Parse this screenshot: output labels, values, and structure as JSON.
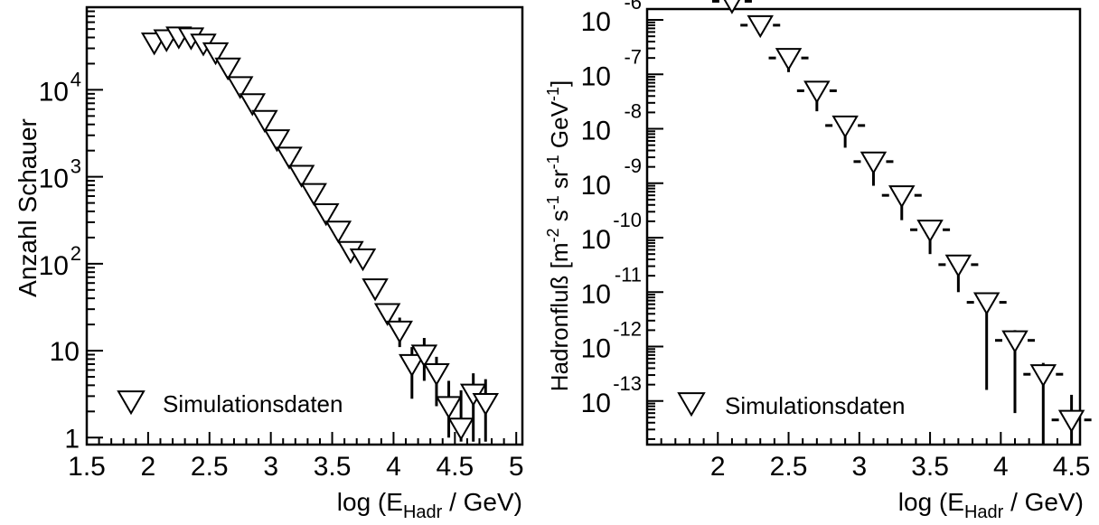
{
  "chart_data": [
    {
      "type": "scatter",
      "xlabel_main": "log (E",
      "xlabel_sub": "Hadr",
      "xlabel_tail": " / GeV)",
      "ylabel": "Anzahl Schauer",
      "xlim": [
        1.5,
        5.05
      ],
      "ylim_log10": [
        -0.08,
        4.95
      ],
      "y_scale": "log",
      "x_ticks": [
        "1.5",
        "2",
        "2.5",
        "3",
        "3.5",
        "4",
        "4.5",
        "5"
      ],
      "y_tick_labels": [
        {
          "value": 1,
          "base": "1",
          "exp": ""
        },
        {
          "value": 10,
          "base": "10",
          "exp": ""
        },
        {
          "value": 100,
          "base": "10",
          "exp": "2"
        },
        {
          "value": 1000,
          "base": "10",
          "exp": "3"
        },
        {
          "value": 10000,
          "base": "10",
          "exp": "4"
        }
      ],
      "legend": {
        "label": "Simulationsdaten",
        "position": "bottom-left"
      },
      "series": [
        {
          "name": "Simulationsdaten",
          "marker": "open-down-triangle",
          "points": [
            {
              "x": 2.05,
              "y": 35000
            },
            {
              "x": 2.15,
              "y": 38000
            },
            {
              "x": 2.25,
              "y": 41000
            },
            {
              "x": 2.35,
              "y": 40000
            },
            {
              "x": 2.45,
              "y": 34000
            },
            {
              "x": 2.55,
              "y": 27000
            },
            {
              "x": 2.65,
              "y": 18000
            },
            {
              "x": 2.75,
              "y": 11000
            },
            {
              "x": 2.85,
              "y": 7000
            },
            {
              "x": 2.95,
              "y": 4500
            },
            {
              "x": 3.05,
              "y": 2700
            },
            {
              "x": 3.15,
              "y": 1700
            },
            {
              "x": 3.25,
              "y": 1050
            },
            {
              "x": 3.35,
              "y": 650
            },
            {
              "x": 3.45,
              "y": 380
            },
            {
              "x": 3.55,
              "y": 240
            },
            {
              "x": 3.65,
              "y": 140
            },
            {
              "x": 3.75,
              "y": 115
            },
            {
              "x": 3.85,
              "y": 52
            },
            {
              "x": 3.95,
              "y": 27
            },
            {
              "x": 4.05,
              "y": 17,
              "err_lo": 11,
              "err_hi": 24
            },
            {
              "x": 4.15,
              "y": 7,
              "err_lo": 2.8,
              "err_hi": 11
            },
            {
              "x": 4.25,
              "y": 9,
              "err_lo": 4.5,
              "err_hi": 14
            },
            {
              "x": 4.35,
              "y": 5.5,
              "err_lo": 2.3,
              "err_hi": 8.5
            },
            {
              "x": 4.45,
              "y": 2.3,
              "err_lo": 1,
              "err_hi": 4.5
            },
            {
              "x": 4.55,
              "y": 1.3,
              "err_lo": 0.9,
              "err_hi": 3.5
            },
            {
              "x": 4.65,
              "y": 3.2,
              "err_lo": 0.9,
              "err_hi": 5.5
            },
            {
              "x": 4.75,
              "y": 2.5,
              "err_lo": 0.9,
              "err_hi": 4.7
            }
          ]
        }
      ]
    },
    {
      "type": "scatter",
      "xlabel_main": "log (E",
      "xlabel_sub": "Hadr",
      "xlabel_tail": " / GeV)",
      "ylabel_parts": [
        {
          "t": "Hadronfluß [m",
          "s": "n"
        },
        {
          "t": "-2",
          "s": "sup"
        },
        {
          "t": " s",
          "s": "n"
        },
        {
          "t": "-1",
          "s": "sup"
        },
        {
          "t": " sr",
          "s": "n"
        },
        {
          "t": "-1",
          "s": "sup"
        },
        {
          "t": " GeV",
          "s": "n"
        },
        {
          "t": "-1",
          "s": "sup"
        },
        {
          "t": "]",
          "s": "n"
        }
      ],
      "xlim": [
        1.5,
        4.56
      ],
      "ylim_log10": [
        -13.8,
        -5.8
      ],
      "y_scale": "log",
      "x_ticks": [
        "2",
        "2.5",
        "3",
        "3.5",
        "4",
        "4.5"
      ],
      "y_tick_labels": [
        {
          "exp": "-6"
        },
        {
          "exp": "-7"
        },
        {
          "exp": "-8"
        },
        {
          "exp": "-9"
        },
        {
          "exp": "-10"
        },
        {
          "exp": "-11"
        },
        {
          "exp": "-12"
        },
        {
          "exp": "-13"
        }
      ],
      "y_tick_base": "10",
      "legend": {
        "label": "Simulationsdaten",
        "position": "bottom-left"
      },
      "series": [
        {
          "name": "Simulationsdaten",
          "marker": "open-down-triangle",
          "points": [
            {
              "x": 2.1,
              "y": 2.2e-06
            },
            {
              "x": 2.3,
              "y": 8e-07,
              "err_lo": 6.5e-07,
              "err_hi": 9.5e-07
            },
            {
              "x": 2.5,
              "y": 2e-07,
              "err_lo": 1.1e-07,
              "err_hi": 2.5e-07
            },
            {
              "x": 2.7,
              "y": 5e-08,
              "err_lo": 2.1e-08,
              "err_hi": 6.5e-08
            },
            {
              "x": 2.9,
              "y": 1.15e-08,
              "err_lo": 4.5e-09,
              "err_hi": 1.5e-08
            },
            {
              "x": 3.1,
              "y": 2.5e-09,
              "err_lo": 9e-10,
              "err_hi": 3.4e-09
            },
            {
              "x": 3.3,
              "y": 6e-10,
              "err_lo": 2.1e-10,
              "err_hi": 8e-10
            },
            {
              "x": 3.5,
              "y": 1.4e-10,
              "err_lo": 5e-11,
              "err_hi": 1.8e-10
            },
            {
              "x": 3.7,
              "y": 3.2e-11,
              "err_lo": 1e-11,
              "err_hi": 4.5e-11
            },
            {
              "x": 3.9,
              "y": 6.5e-12,
              "err_lo": 1.6e-13,
              "err_hi": 9.5e-12
            },
            {
              "x": 4.1,
              "y": 1.3e-12,
              "err_lo": 6e-14,
              "err_hi": 2e-12
            },
            {
              "x": 4.3,
              "y": 3.1e-13,
              "err_lo": 1.6e-14,
              "err_hi": 5e-13
            },
            {
              "x": 4.5,
              "y": 4.5e-14,
              "err_lo": 1.6e-14,
              "err_hi": 1.3e-13
            }
          ]
        }
      ]
    }
  ]
}
